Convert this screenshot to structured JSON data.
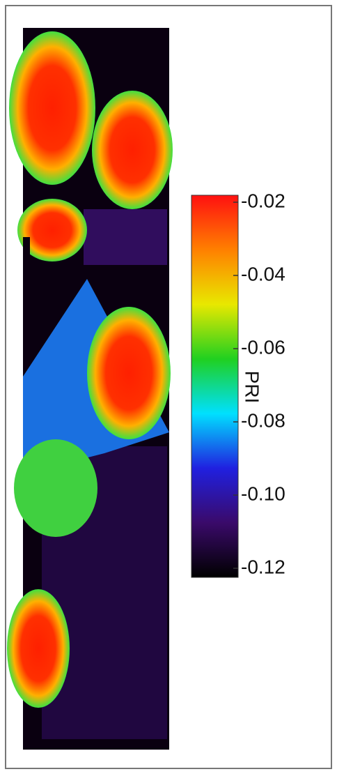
{
  "chart_data": {
    "type": "colorbar-image",
    "colorbar_label": "PRI",
    "zlim": [
      -0.12,
      -0.02
    ],
    "zticks": [
      -0.02,
      -0.04,
      -0.06,
      -0.08,
      {
        "value": -0.1,
        "label": "-0.10"
      },
      -0.12
    ],
    "colormap": [
      "#000000",
      "#3a0a6a",
      "#2020e0",
      "#00e0ff",
      "#20d020",
      "#e8e800",
      "#ff8000",
      "#ff1010"
    ]
  }
}
